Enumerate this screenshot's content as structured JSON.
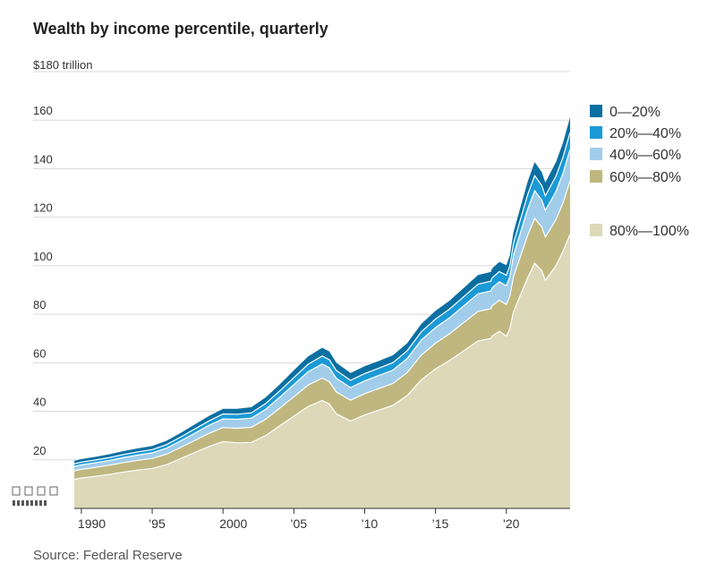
{
  "chart_data": {
    "type": "area",
    "stacked": true,
    "title": "Wealth by income percentile, quarterly",
    "ylabel_unit": "$180 trillion",
    "source": "Source: Federal Reserve",
    "ylim": [
      0,
      180
    ],
    "xlim": [
      1989.5,
      2024.5
    ],
    "y_ticks": [
      20,
      40,
      60,
      80,
      100,
      120,
      140,
      160
    ],
    "y_tick_labels": [
      "20",
      "40",
      "60",
      "80",
      "100",
      "120",
      "140",
      "160"
    ],
    "x_ticks": [
      1990,
      1995,
      2000,
      2005,
      2010,
      2015,
      2020
    ],
    "x_tick_labels": [
      "1990",
      "’95",
      "2000",
      "’05",
      "’10",
      "’15",
      "’20"
    ],
    "legend_position": "right",
    "years": [
      1989.5,
      1990,
      1991,
      1992,
      1993,
      1994,
      1995,
      1996,
      1997,
      1998,
      1999,
      2000,
      2001,
      2002,
      2003,
      2004,
      2005,
      2006,
      2007,
      2007.5,
      2008,
      2009,
      2010,
      2011,
      2012,
      2013,
      2014,
      2015,
      2016,
      2017,
      2018,
      2018.9,
      2019,
      2019.5,
      2020,
      2020.25,
      2020.5,
      2021,
      2021.5,
      2022,
      2022.5,
      2022.75,
      2023,
      2023.5,
      2024,
      2024.5
    ],
    "series": [
      {
        "name": "80%—100%",
        "color": "#ddd8b8",
        "values": [
          12,
          12.5,
          13.2,
          14,
          15,
          15.8,
          16.5,
          18,
          20.5,
          23,
          25.5,
          27.5,
          27,
          27.2,
          30,
          34,
          38,
          42,
          44.5,
          43,
          39,
          36,
          38.5,
          40.5,
          42.5,
          46.5,
          53,
          57.5,
          61,
          65,
          69,
          70,
          71,
          73,
          71,
          74,
          81,
          88,
          95,
          101,
          98,
          94,
          96,
          100,
          106,
          113
        ]
      },
      {
        "name": "60%—80%",
        "color": "#bfb77f",
        "values": [
          3.5,
          3.6,
          3.7,
          3.8,
          3.9,
          4,
          4.1,
          4.3,
          4.6,
          5,
          5.4,
          5.8,
          6,
          6.2,
          6.7,
          7.3,
          8,
          8.8,
          9.2,
          9.2,
          9,
          8.6,
          8.8,
          8.9,
          9,
          9.5,
          10.2,
          10.6,
          11,
          11.6,
          12.2,
          12.3,
          12.5,
          12.8,
          13,
          13.5,
          14.5,
          16,
          17.5,
          18.5,
          18,
          17.8,
          18.2,
          19,
          20,
          22
        ]
      },
      {
        "name": "40%—60%",
        "color": "#a1cdea",
        "values": [
          1.8,
          1.85,
          1.9,
          2,
          2.1,
          2.2,
          2.3,
          2.5,
          2.7,
          3,
          3.3,
          3.6,
          3.7,
          3.8,
          4.1,
          4.5,
          5,
          5.5,
          5.8,
          5.8,
          5.6,
          5.2,
          5.3,
          5.4,
          5.5,
          5.8,
          6.2,
          6.4,
          6.6,
          6.9,
          7.2,
          7.3,
          7.4,
          7.6,
          7.8,
          8,
          8.8,
          9.8,
          10.8,
          11.4,
          11.1,
          11,
          11.2,
          11.6,
          12.2,
          13
        ]
      },
      {
        "name": "20%—40%",
        "color": "#1b9ad6",
        "values": [
          1.1,
          1.12,
          1.15,
          1.2,
          1.25,
          1.3,
          1.35,
          1.45,
          1.55,
          1.7,
          1.85,
          2,
          2.1,
          2.2,
          2.4,
          2.6,
          2.9,
          3.1,
          3.3,
          3.3,
          3.2,
          3,
          3,
          3,
          3.1,
          3.2,
          3.4,
          3.5,
          3.6,
          3.8,
          4,
          4,
          4.1,
          4.2,
          4.3,
          4.5,
          4.9,
          5.4,
          5.9,
          6.2,
          6,
          6,
          6.1,
          6.3,
          6.6,
          7
        ]
      },
      {
        "name": "0—20%",
        "color": "#0b6fa2",
        "values": [
          1.2,
          1.25,
          1.3,
          1.35,
          1.4,
          1.45,
          1.5,
          1.6,
          1.7,
          1.85,
          2,
          2.1,
          2.2,
          2.3,
          2.5,
          2.7,
          3,
          3.2,
          3.4,
          3.4,
          3.2,
          3,
          3,
          3,
          3,
          3.1,
          3.3,
          3.4,
          3.5,
          3.6,
          3.8,
          3.8,
          3.9,
          4,
          4.1,
          4.3,
          4.6,
          5,
          5.4,
          5.6,
          5.5,
          5.5,
          5.6,
          5.8,
          6,
          6.2
        ]
      }
    ],
    "legend": [
      {
        "label": "0—20%",
        "color": "#0b6fa2"
      },
      {
        "label": "20%—40%",
        "color": "#1b9ad6"
      },
      {
        "label": "40%—60%",
        "color": "#a1cdea"
      },
      {
        "label": "60%—80%",
        "color": "#bfb77f"
      },
      {
        "label": "80%—100%",
        "color": "#ddd8b8"
      }
    ]
  }
}
